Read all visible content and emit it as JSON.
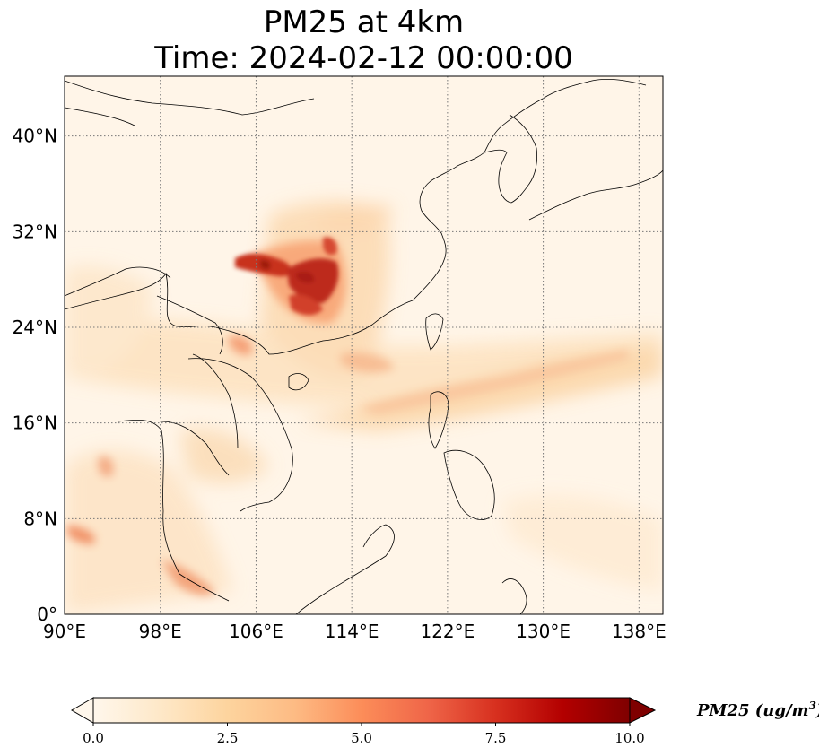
{
  "title": {
    "line1": "PM25 at 4km",
    "line2": "Time: 2024-02-12 00:00:00"
  },
  "map": {
    "projection": "PlateCarree",
    "lon_range": [
      90,
      140
    ],
    "lat_range": [
      0,
      45
    ],
    "gridlines": "dotted",
    "lon_ticks": [
      {
        "value": 90,
        "label": "90°E"
      },
      {
        "value": 98,
        "label": "98°E"
      },
      {
        "value": 106,
        "label": "106°E"
      },
      {
        "value": 114,
        "label": "114°E"
      },
      {
        "value": 122,
        "label": "122°E"
      },
      {
        "value": 130,
        "label": "130°E"
      },
      {
        "value": 138,
        "label": "138°E"
      }
    ],
    "lat_ticks": [
      {
        "value": 0,
        "label": "0°"
      },
      {
        "value": 8,
        "label": "8°N"
      },
      {
        "value": 16,
        "label": "16°N"
      },
      {
        "value": 24,
        "label": "24°N"
      },
      {
        "value": 32,
        "label": "32°N"
      },
      {
        "value": 40,
        "label": "40°N"
      }
    ]
  },
  "colorbar": {
    "colormap": "OrRd",
    "extend": "both",
    "min": 0,
    "max": 10,
    "colors": [
      "#fff7ec",
      "#fee8c8",
      "#fdd49e",
      "#fdbb84",
      "#fc8d59",
      "#ef6548",
      "#d7301f",
      "#b30000",
      "#7f0000"
    ],
    "ticks": [
      "0.0",
      "2.5",
      "5.0",
      "7.5",
      "10.0"
    ],
    "label": "PM25 (ug/m",
    "label_sup": "3",
    "label_end": ")"
  }
}
